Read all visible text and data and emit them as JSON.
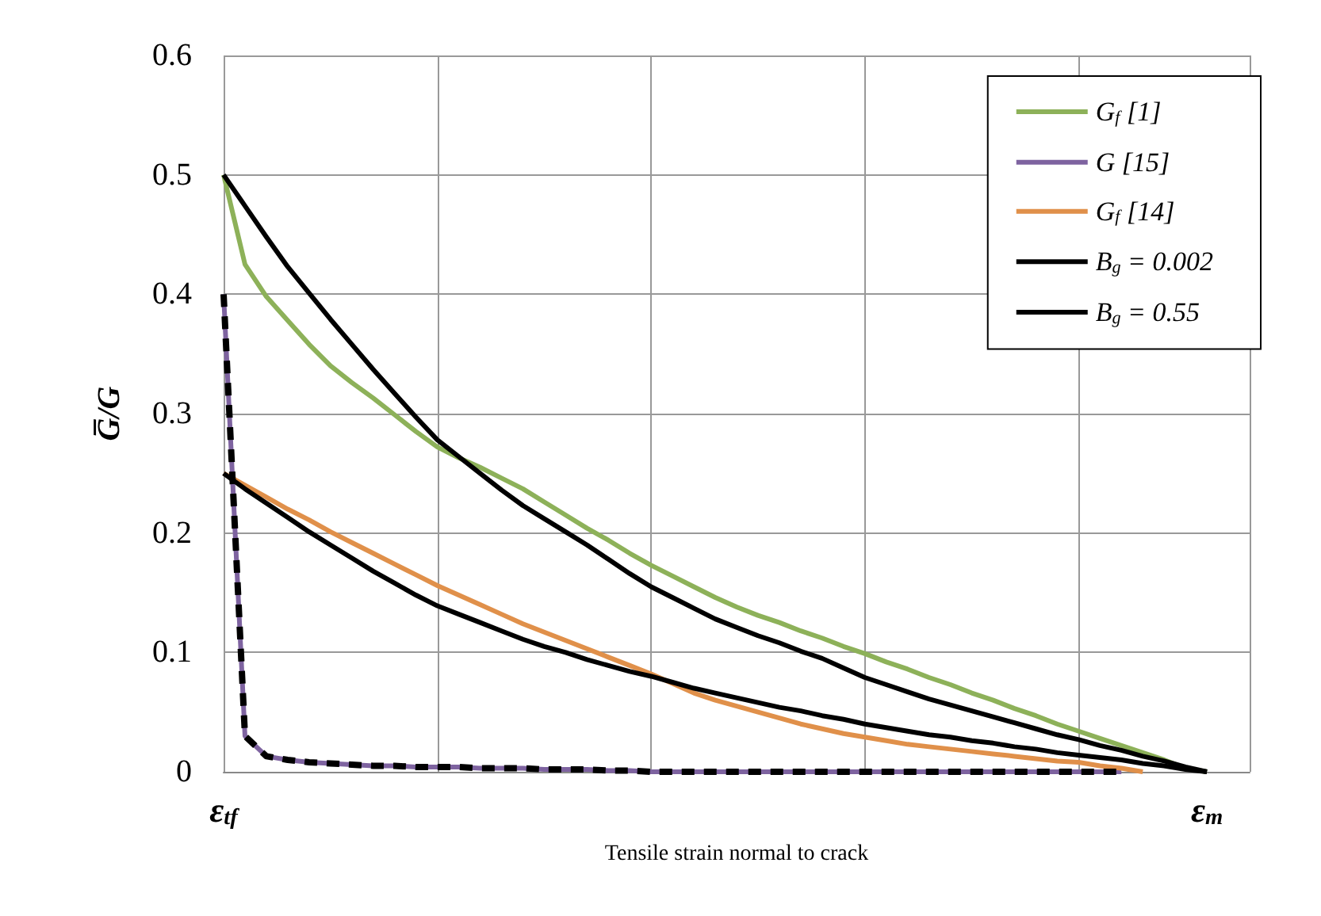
{
  "chart_data": {
    "type": "line",
    "xlabel": "Tensile strain normal to crack",
    "ylabel": "G̅/G",
    "categories": [
      "ε$_{tf}$",
      null,
      null,
      null,
      null,
      null,
      null,
      null,
      null,
      null,
      null,
      null,
      null,
      null,
      null,
      null,
      null,
      null,
      null,
      null,
      null,
      null,
      null,
      null,
      null,
      null,
      null,
      null,
      null,
      null,
      null,
      null,
      null,
      null,
      null,
      null,
      null,
      null,
      null,
      null,
      null,
      null,
      null,
      null,
      null,
      null,
      "ε$_{m}$",
      null,
      null
    ],
    "ylim": [
      0,
      0.6
    ],
    "yticks": [
      0,
      0.1,
      0.2,
      0.3,
      0.4,
      0.5,
      0.6
    ],
    "grid": true,
    "legend": "top right",
    "marker": "none",
    "series": [
      {
        "name": "G$_{f}$ [1]",
        "color": "#8db159",
        "line_style": "solid",
        "values": [
          0.5,
          0.425,
          0.398,
          0.378,
          0.358,
          0.34,
          0.326,
          0.313,
          0.299,
          0.285,
          0.272,
          0.263,
          0.255,
          0.246,
          0.237,
          0.226,
          0.215,
          0.204,
          0.194,
          0.183,
          0.173,
          0.164,
          0.155,
          0.146,
          0.138,
          0.131,
          0.125,
          0.118,
          0.112,
          0.105,
          0.099,
          0.092,
          0.086,
          0.079,
          0.073,
          0.066,
          0.06,
          0.053,
          0.047,
          0.04,
          0.034,
          0.028,
          0.022,
          0.016,
          0.01,
          0.003,
          0,
          null,
          null
        ]
      },
      {
        "name": "G [15]",
        "color": "#7e63a0",
        "line_style": "solid",
        "values": [
          0.4,
          0.03,
          0.013,
          0.01,
          0.008,
          0.007,
          0.006,
          0.005,
          0.005,
          0.004,
          0.004,
          0.004,
          0.003,
          0.003,
          0.003,
          0.002,
          0.002,
          0.002,
          0.001,
          0.001,
          0,
          0,
          0,
          0,
          0,
          0,
          0,
          0,
          0,
          0,
          0,
          0,
          0,
          0,
          0,
          0,
          0,
          0,
          0,
          0,
          0,
          0,
          0,
          null,
          null,
          null,
          null,
          null,
          null
        ]
      },
      {
        "name": "G$_{f}$ [14]",
        "color": "#e0904a",
        "line_style": "solid",
        "values": [
          0.25,
          0.24,
          0.23,
          0.22,
          0.211,
          0.201,
          0.192,
          0.183,
          0.174,
          0.165,
          0.156,
          0.148,
          0.14,
          0.132,
          0.124,
          0.117,
          0.11,
          0.103,
          0.096,
          0.089,
          0.082,
          0.074,
          0.066,
          0.06,
          0.055,
          0.05,
          0.045,
          0.04,
          0.036,
          0.032,
          0.029,
          0.026,
          0.023,
          0.021,
          0.019,
          0.017,
          0.015,
          0.013,
          0.011,
          0.009,
          0.008,
          0.005,
          0.003,
          0,
          null,
          null,
          null,
          null,
          null
        ]
      },
      {
        "name": "B$_{g}$ = 0.002",
        "color": "#000000",
        "line_style": "dashed",
        "values": [
          0.4,
          0.03,
          0.013,
          0.01,
          0.008,
          0.007,
          0.006,
          0.005,
          0.005,
          0.004,
          0.004,
          0.004,
          0.003,
          0.003,
          0.003,
          0.002,
          0.002,
          0.002,
          0.001,
          0.001,
          0,
          0,
          0,
          0,
          0,
          0,
          0,
          0,
          0,
          0,
          0,
          0,
          0,
          0,
          0,
          0,
          0,
          0,
          0,
          0,
          0,
          0,
          0,
          null,
          null,
          null,
          null,
          null,
          null
        ]
      },
      {
        "name": "B$_{g}$ = 0.55",
        "color": "#000000",
        "line_style": "solid",
        "values": [
          0.5,
          0.474,
          0.448,
          0.423,
          0.401,
          0.379,
          0.358,
          0.337,
          0.317,
          0.297,
          0.278,
          0.264,
          0.25,
          0.236,
          0.223,
          0.212,
          0.201,
          0.19,
          0.178,
          0.166,
          0.155,
          0.146,
          0.137,
          0.128,
          0.121,
          0.114,
          0.108,
          0.101,
          0.095,
          0.087,
          0.079,
          0.073,
          0.067,
          0.061,
          0.056,
          0.051,
          0.046,
          0.041,
          0.036,
          0.031,
          0.027,
          0.022,
          0.018,
          0.013,
          0.009,
          0.004,
          0,
          null,
          null
        ]
      },
      {
        "color": "#000000",
        "line_style": "solid",
        "values": [
          0.25,
          0.237,
          0.225,
          0.213,
          0.201,
          0.19,
          0.179,
          0.168,
          0.158,
          0.148,
          0.139,
          0.132,
          0.125,
          0.118,
          0.111,
          0.105,
          0.1,
          0.094,
          0.089,
          0.084,
          0.08,
          0.075,
          0.07,
          0.066,
          0.062,
          0.058,
          0.054,
          0.051,
          0.047,
          0.044,
          0.04,
          0.037,
          0.034,
          0.031,
          0.029,
          0.026,
          0.024,
          0.021,
          0.019,
          0.016,
          0.014,
          0.012,
          0.01,
          0.007,
          0.005,
          0.002,
          0,
          null,
          null
        ]
      }
    ]
  }
}
